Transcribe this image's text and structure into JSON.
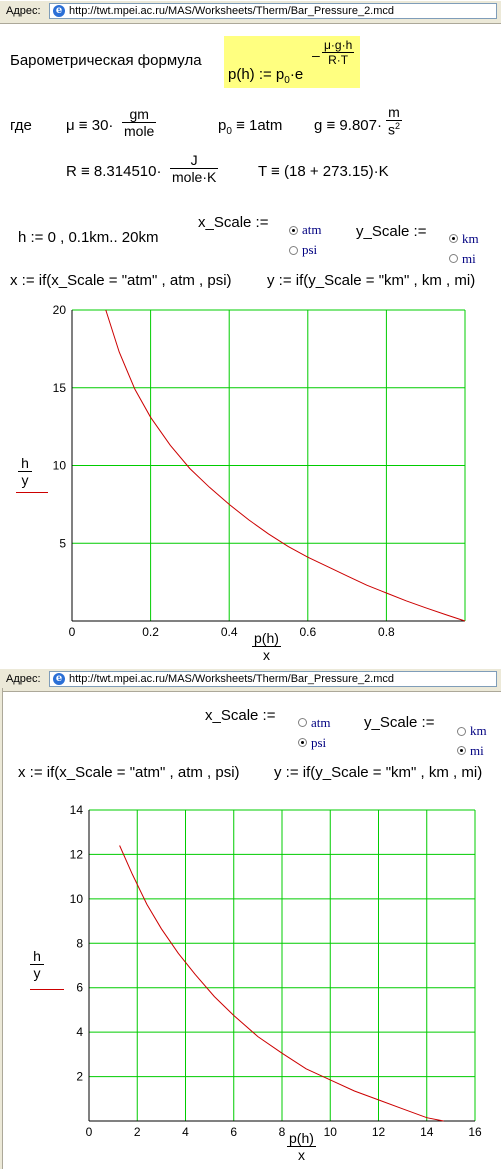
{
  "address_bar": {
    "label": "Адрес:",
    "url": "http://twt.mpei.ac.ru/MAS/Worksheets/Therm/Bar_Pressure_2.mcd"
  },
  "section1": {
    "title": "Барометрическая формула",
    "formula_lhs": "p(h) := p",
    "formula_sub0": "0",
    "formula_e": "·e",
    "formula_minus": "–",
    "formula_exp_num": "μ·g·h",
    "formula_exp_den": "R·T",
    "where": "где",
    "mu_def": "μ ≡ 30·",
    "mu_num": "gm",
    "mu_den": "mole",
    "p0_def_a": "p",
    "p0_def_sub": "0",
    "p0_def_b": " ≡ 1atm",
    "g_def": "g ≡ 9.807·",
    "g_num": "m",
    "g_den": "s",
    "g_den_sup": "2",
    "R_def": "R ≡ 8.314510·",
    "R_num": "J",
    "R_den": "mole·K",
    "T_def": "T ≡ (18 + 273.15)·K",
    "h_def": "h := 0 , 0.1km.. 20km",
    "x_scale_label": "x_Scale :=",
    "y_scale_label": "y_Scale :=",
    "x_options": [
      "atm",
      "psi"
    ],
    "x_selected": "atm",
    "y_options": [
      "km",
      "mi"
    ],
    "y_selected": "km",
    "x_def": "x := if(x_Scale = \"atm\" , atm , psi)",
    "y_def": "y := if(y_Scale = \"km\" , km , mi)",
    "ylabel_num": "h",
    "ylabel_den": "y",
    "xlabel_num": "p(h)",
    "xlabel_den": "x"
  },
  "section2": {
    "x_scale_label": "x_Scale :=",
    "y_scale_label": "y_Scale :=",
    "x_options": [
      "atm",
      "psi"
    ],
    "x_selected": "psi",
    "y_options": [
      "km",
      "mi"
    ],
    "y_selected": "mi",
    "x_def": "x := if(x_Scale = \"atm\" , atm , psi)",
    "y_def": "y := if(y_Scale = \"km\" , km , mi)",
    "ylabel_num": "h",
    "ylabel_den": "y",
    "xlabel_num": "p(h)",
    "xlabel_den": "x"
  },
  "colors": {
    "grid": "#00cc00",
    "curve": "#cc0000",
    "highlight": "#ffff80"
  },
  "chart_data": [
    {
      "type": "line",
      "xlim": [
        0,
        1
      ],
      "ylim": [
        0,
        20
      ],
      "x_ticks": [
        "0",
        "0.2",
        "0.4",
        "0.6",
        "0.8"
      ],
      "y_ticks": [
        "5",
        "10",
        "15",
        "20"
      ],
      "grid": true,
      "series": [
        {
          "x": [
            0.086,
            0.12,
            0.16,
            0.2,
            0.25,
            0.3,
            0.35,
            0.4,
            0.45,
            0.5,
            0.55,
            0.6,
            0.65,
            0.7,
            0.75,
            0.8,
            0.85,
            0.9,
            0.95,
            1.0
          ],
          "y": [
            20.0,
            17.3,
            14.9,
            13.1,
            11.3,
            9.8,
            8.6,
            7.5,
            6.5,
            5.6,
            4.8,
            4.1,
            3.5,
            2.9,
            2.3,
            1.8,
            1.3,
            0.85,
            0.42,
            0.0
          ]
        }
      ]
    },
    {
      "type": "line",
      "xlim": [
        0,
        16
      ],
      "ylim": [
        0,
        14
      ],
      "x_ticks": [
        "0",
        "2",
        "4",
        "6",
        "8",
        "10",
        "12",
        "14",
        "16"
      ],
      "y_ticks": [
        "2",
        "4",
        "6",
        "8",
        "10",
        "12",
        "14"
      ],
      "grid": true,
      "series": [
        {
          "x": [
            1.27,
            1.8,
            2.4,
            3.0,
            3.7,
            4.4,
            5.2,
            6.0,
            7.0,
            8.0,
            9.0,
            10.0,
            11.0,
            12.0,
            13.0,
            14.0,
            14.7
          ],
          "y": [
            12.4,
            11.1,
            9.75,
            8.65,
            7.55,
            6.6,
            5.6,
            4.75,
            3.8,
            3.05,
            2.35,
            1.85,
            1.35,
            0.95,
            0.55,
            0.15,
            0.0
          ]
        }
      ]
    }
  ]
}
